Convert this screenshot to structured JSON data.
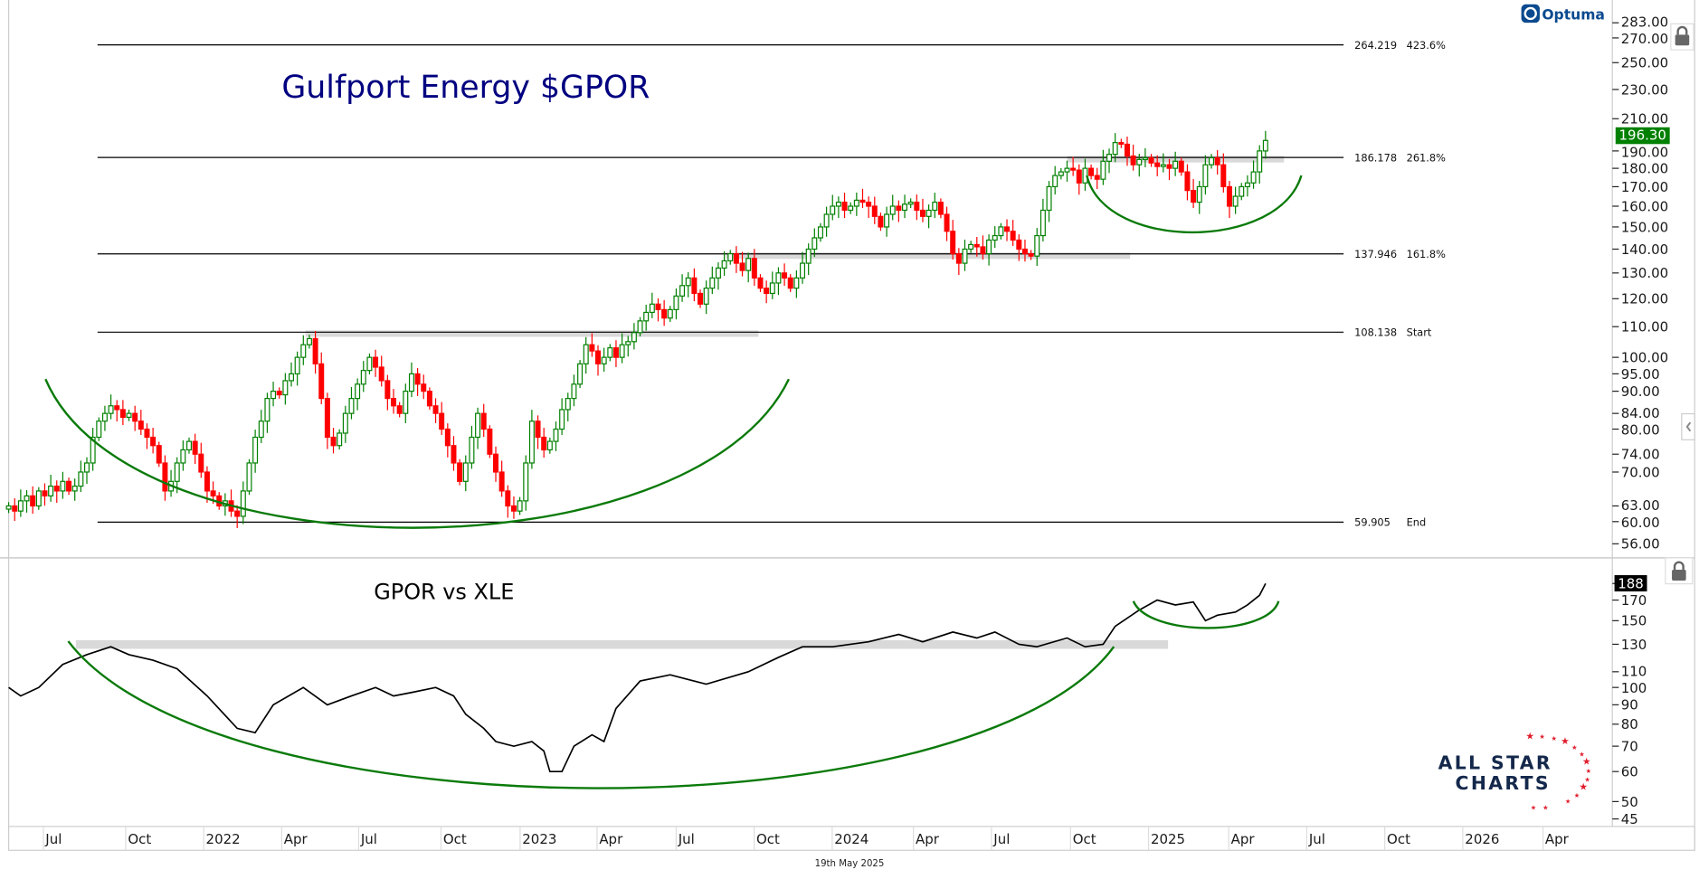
{
  "branding": {
    "platform": "Optuma",
    "publisher_line1": "ALL STAR",
    "publisher_line2": "CHARTS"
  },
  "footer": {
    "date": "19th May 2025"
  },
  "colors": {
    "up": "#008000",
    "down": "#ff0000",
    "arc": "#0a7a0a",
    "title": "#000080",
    "band": "#d9d9d9"
  },
  "chart_data": [
    {
      "type": "candlestick",
      "title": "Gulfport Energy $GPOR",
      "scale": "log",
      "interval": "weekly",
      "start_week": "Jun 2021",
      "y_ticks": [
        "283.00",
        "270.00",
        "250.00",
        "230.00",
        "210.00",
        "190.00",
        "180.00",
        "170.00",
        "160.00",
        "150.00",
        "140.00",
        "130.00",
        "120.00",
        "110.00",
        "100.00",
        "95.00",
        "90.00",
        "84.00",
        "80.00",
        "74.00",
        "70.00",
        "63.00",
        "60.00",
        "56.00"
      ],
      "ylim": [
        53,
        290
      ],
      "last_price": "196.30",
      "closes": [
        63,
        62,
        64,
        65,
        63,
        66,
        65,
        67,
        66,
        68,
        66,
        67,
        70,
        72,
        78,
        82,
        84,
        86,
        85,
        83,
        84,
        82,
        80,
        78,
        76,
        72,
        66,
        68,
        72,
        75,
        77,
        74,
        70,
        66,
        65,
        63,
        64,
        62,
        61,
        66,
        72,
        78,
        82,
        88,
        90,
        89,
        93,
        95,
        100,
        104,
        106,
        98,
        88,
        78,
        76,
        79,
        84,
        88,
        92,
        96,
        100,
        97,
        93,
        88,
        86,
        84,
        90,
        95,
        92,
        90,
        86,
        84,
        80,
        76,
        72,
        68,
        72,
        78,
        84,
        80,
        74,
        70,
        66,
        63,
        62,
        64,
        72,
        82,
        78,
        75,
        77,
        80,
        85,
        88,
        92,
        98,
        104,
        102,
        98,
        100,
        103,
        100,
        104,
        105,
        108,
        112,
        115,
        118,
        116,
        113,
        116,
        121,
        125,
        128,
        122,
        118,
        124,
        128,
        132,
        135,
        138,
        134,
        131,
        136,
        128,
        124,
        122,
        126,
        130,
        128,
        124,
        128,
        134,
        140,
        145,
        150,
        156,
        160,
        162,
        158,
        160,
        163,
        162,
        160,
        155,
        150,
        156,
        160,
        158,
        161,
        162,
        158,
        155,
        158,
        162,
        156,
        148,
        138,
        134,
        140,
        142,
        141,
        138,
        144,
        146,
        150,
        148,
        144,
        140,
        138,
        137,
        146,
        158,
        170,
        176,
        178,
        180,
        179,
        172,
        180,
        176,
        174,
        184,
        188,
        195,
        194,
        187,
        182,
        185,
        186,
        183,
        181,
        182,
        180,
        184,
        178,
        168,
        162,
        170,
        182,
        186,
        182,
        170,
        160,
        165,
        170,
        172,
        178,
        190,
        196.3
      ],
      "fib_levels": [
        {
          "value": "264.219",
          "label": "423.6%",
          "v": 264.219
        },
        {
          "value": "186.178",
          "label": "261.8%",
          "v": 186.178
        },
        {
          "value": "137.946",
          "label": "161.8%",
          "v": 137.946
        },
        {
          "value": "108.138",
          "label": "Start",
          "v": 108.138
        },
        {
          "value": "59.905",
          "label": "End",
          "v": 59.905
        }
      ],
      "annotations": [
        "rounded-bottom arc 2021-2023",
        "cup arc Nov 2024 - May 2025",
        "resistance band 108",
        "resistance band 138",
        "resistance band 186"
      ]
    },
    {
      "type": "line",
      "title": "GPOR vs XLE",
      "scale": "log",
      "y_ticks": [
        "188",
        "170",
        "150",
        "130",
        "110",
        "100",
        "90",
        "80",
        "70",
        "60",
        "50",
        "45"
      ],
      "ylim": [
        43,
        195
      ],
      "last_value": "188",
      "points": [
        [
          0,
          100
        ],
        [
          2,
          95
        ],
        [
          5,
          100
        ],
        [
          9,
          115
        ],
        [
          13,
          122
        ],
        [
          17,
          128
        ],
        [
          20,
          122
        ],
        [
          24,
          118
        ],
        [
          28,
          112
        ],
        [
          33,
          95
        ],
        [
          38,
          78
        ],
        [
          41,
          76
        ],
        [
          44,
          90
        ],
        [
          49,
          100
        ],
        [
          53,
          90
        ],
        [
          57,
          95
        ],
        [
          61,
          100
        ],
        [
          64,
          95
        ],
        [
          67,
          97
        ],
        [
          71,
          100
        ],
        [
          74,
          95
        ],
        [
          76,
          85
        ],
        [
          79,
          78
        ],
        [
          81,
          72
        ],
        [
          84,
          70
        ],
        [
          87,
          72
        ],
        [
          89,
          68
        ],
        [
          90,
          60
        ],
        [
          92,
          60
        ],
        [
          94,
          70
        ],
        [
          97,
          75
        ],
        [
          99,
          72
        ],
        [
          101,
          88
        ],
        [
          105,
          104
        ],
        [
          110,
          108
        ],
        [
          116,
          102
        ],
        [
          123,
          110
        ],
        [
          128,
          120
        ],
        [
          132,
          128
        ],
        [
          137,
          128
        ],
        [
          143,
          132
        ],
        [
          148,
          138
        ],
        [
          152,
          132
        ],
        [
          157,
          140
        ],
        [
          161,
          135
        ],
        [
          164,
          140
        ],
        [
          168,
          130
        ],
        [
          171,
          128
        ],
        [
          176,
          135
        ],
        [
          179,
          128
        ],
        [
          182,
          130
        ],
        [
          184,
          145
        ],
        [
          188,
          160
        ],
        [
          191,
          170
        ],
        [
          194,
          165
        ],
        [
          197,
          168
        ],
        [
          199,
          150
        ],
        [
          201,
          155
        ],
        [
          204,
          158
        ],
        [
          206,
          165
        ],
        [
          208,
          175
        ],
        [
          209,
          188
        ]
      ],
      "annotations": [
        "relative-strength band 130",
        "rounded-bottom arc",
        "small cup arc"
      ]
    }
  ],
  "x_axis": {
    "labels": [
      "Jul",
      "Oct",
      "2022",
      "Apr",
      "Jul",
      "Oct",
      "2023",
      "Apr",
      "Jul",
      "Oct",
      "2024",
      "Apr",
      "Jul",
      "Oct",
      "2025",
      "Apr",
      "Jul",
      "Oct",
      "2026",
      "Apr"
    ]
  }
}
